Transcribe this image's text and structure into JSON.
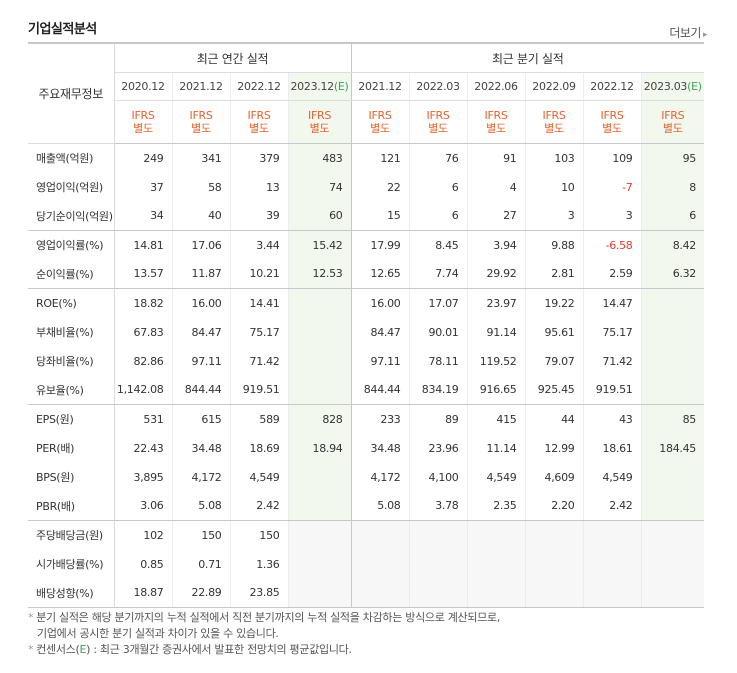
{
  "section_title": "기업실적분석",
  "more_label": "더보기",
  "more_icon": "chevron-right-icon",
  "header": {
    "label": "주요재무정보",
    "annual_title": "최근 연간 실적",
    "quarter_title": "최근 분기 실적",
    "annual_periods": [
      "2020.12",
      "2021.12",
      "2022.12",
      "2023.12"
    ],
    "quarter_periods": [
      "2021.12",
      "2022.03",
      "2022.06",
      "2022.09",
      "2022.12",
      "2023.03"
    ],
    "estimate_mark": "(E)",
    "ifrs_line1": "IFRS",
    "ifrs_line2": "별도"
  },
  "rows": [
    {
      "label": "매출액(억원)",
      "values": [
        "249",
        "341",
        "379",
        "483",
        "121",
        "76",
        "91",
        "103",
        "109",
        "95"
      ]
    },
    {
      "label": "영업이익(억원)",
      "values": [
        "37",
        "58",
        "13",
        "74",
        "22",
        "6",
        "4",
        "10",
        "-7",
        "8"
      ]
    },
    {
      "label": "당기순이익(억원)",
      "values": [
        "34",
        "40",
        "39",
        "60",
        "15",
        "6",
        "27",
        "3",
        "3",
        "6"
      ]
    },
    {
      "label": "영업이익률(%)",
      "values": [
        "14.81",
        "17.06",
        "3.44",
        "15.42",
        "17.99",
        "8.45",
        "3.94",
        "9.88",
        "-6.58",
        "8.42"
      ]
    },
    {
      "label": "순이익률(%)",
      "values": [
        "13.57",
        "11.87",
        "10.21",
        "12.53",
        "12.65",
        "7.74",
        "29.92",
        "2.81",
        "2.59",
        "6.32"
      ]
    },
    {
      "label": "ROE(%)",
      "values": [
        "18.82",
        "16.00",
        "14.41",
        "",
        "16.00",
        "17.07",
        "23.97",
        "19.22",
        "14.47",
        ""
      ]
    },
    {
      "label": "부채비율(%)",
      "values": [
        "67.83",
        "84.47",
        "75.17",
        "",
        "84.47",
        "90.01",
        "91.14",
        "95.61",
        "75.17",
        ""
      ]
    },
    {
      "label": "당좌비율(%)",
      "values": [
        "82.86",
        "97.11",
        "71.42",
        "",
        "97.11",
        "78.11",
        "119.52",
        "79.07",
        "71.42",
        ""
      ]
    },
    {
      "label": "유보율(%)",
      "values": [
        "1,142.08",
        "844.44",
        "919.51",
        "",
        "844.44",
        "834.19",
        "916.65",
        "925.45",
        "919.51",
        ""
      ]
    },
    {
      "label": "EPS(원)",
      "values": [
        "531",
        "615",
        "589",
        "828",
        "233",
        "89",
        "415",
        "44",
        "43",
        "85"
      ]
    },
    {
      "label": "PER(배)",
      "values": [
        "22.43",
        "34.48",
        "18.69",
        "18.94",
        "34.48",
        "23.96",
        "11.14",
        "12.99",
        "18.61",
        "184.45"
      ]
    },
    {
      "label": "BPS(원)",
      "values": [
        "3,895",
        "4,172",
        "4,549",
        "",
        "4,172",
        "4,100",
        "4,549",
        "4,609",
        "4,549",
        ""
      ]
    },
    {
      "label": "PBR(배)",
      "values": [
        "3.06",
        "5.08",
        "2.42",
        "",
        "5.08",
        "3.78",
        "2.35",
        "2.20",
        "2.42",
        ""
      ]
    },
    {
      "label": "주당배당금(원)",
      "values": [
        "102",
        "150",
        "150",
        "",
        "",
        "",
        "",
        "",
        "",
        ""
      ]
    },
    {
      "label": "시가배당률(%)",
      "values": [
        "0.85",
        "0.71",
        "1.36",
        "",
        "",
        "",
        "",
        "",
        "",
        ""
      ]
    },
    {
      "label": "배당성향(%)",
      "values": [
        "18.87",
        "22.89",
        "23.85",
        "",
        "",
        "",
        "",
        "",
        "",
        ""
      ]
    }
  ],
  "notes": {
    "line1a": "분기 실적은 해당 분기까지의 누적 실적에서 직전 분기까지의 누적 실적을 차감하는 방식으로 계산되므로,",
    "line1b": "기업에서 공시한 분기 실적과 차이가 있을 수 있습니다.",
    "line2_prefix": "컨센서스(",
    "line2_e": "E",
    "line2_suffix": ") : 최근 3개월간 증권사에서 발표한 전망치의 평균값입니다."
  },
  "colors": {
    "negative": "#e23a2e",
    "ifrs": "#e4622e",
    "estimate": "#3aa35a",
    "estimate_bg": "#f3f8ef"
  }
}
